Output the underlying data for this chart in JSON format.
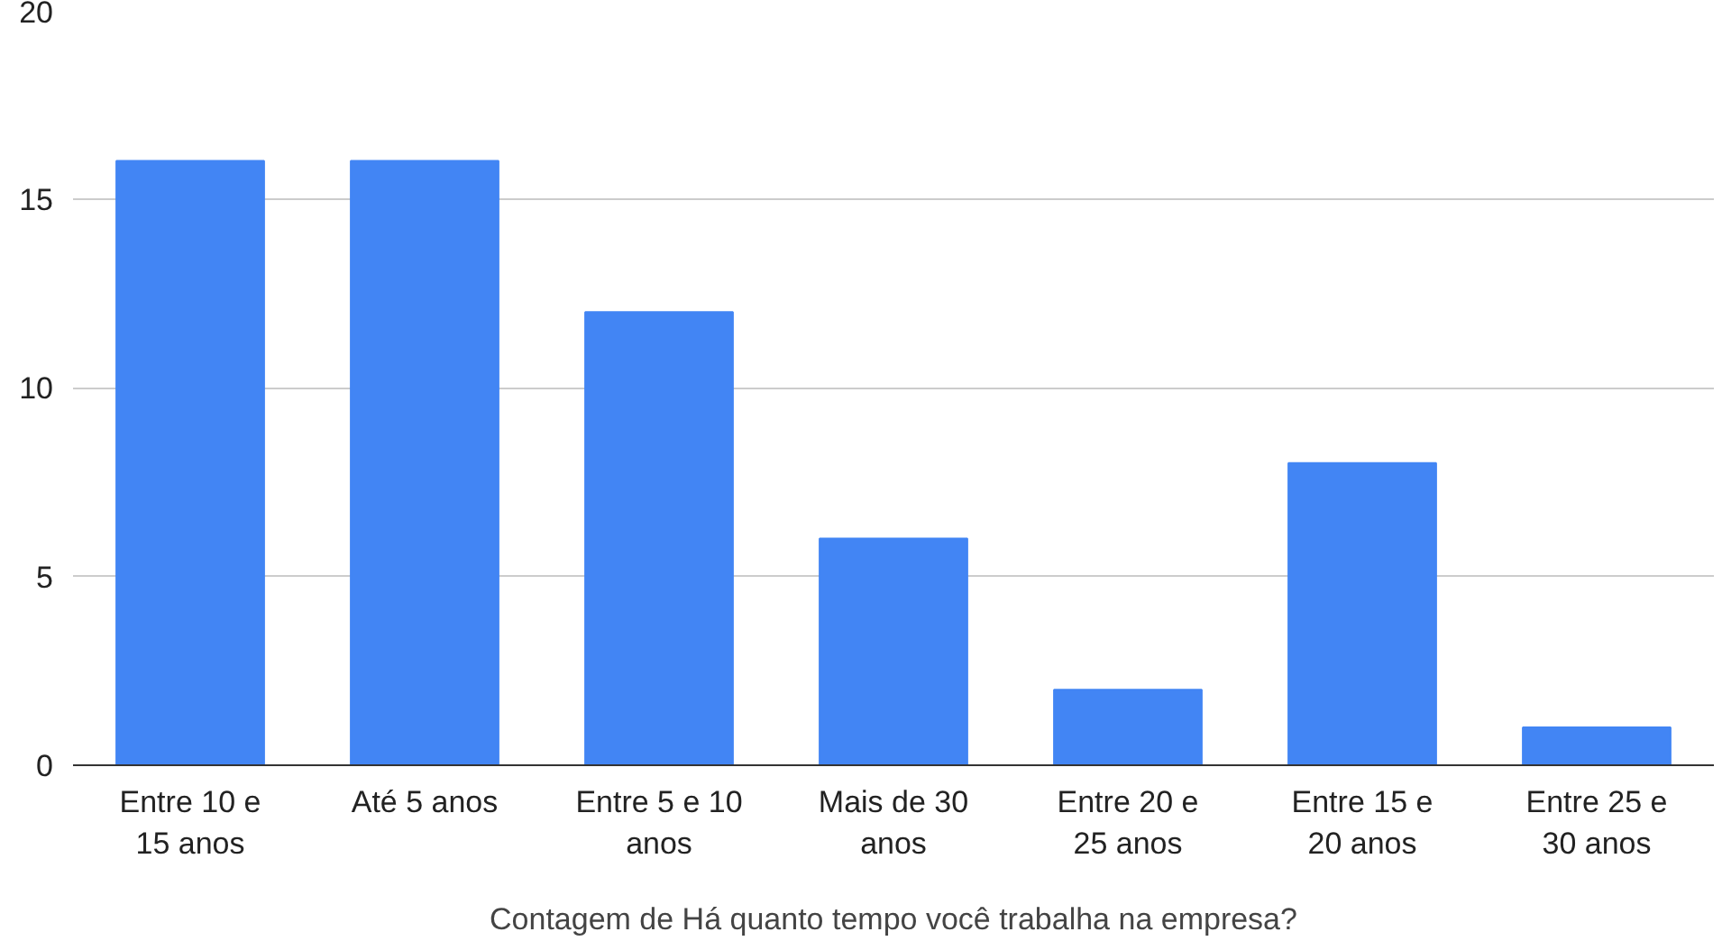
{
  "chart_data": {
    "type": "bar",
    "xlabel": "Contagem de Há quanto tempo você trabalha na empresa?",
    "categories": [
      "Entre 10 e 15 anos",
      "Até 5 anos",
      "Entre 5 e 10 anos",
      "Mais de 30 anos",
      "Entre 20 e 25 anos",
      "Entre 15 e 20 anos",
      "Entre 25 e 30 anos"
    ],
    "values": [
      16,
      16,
      12,
      6,
      2,
      8,
      1
    ],
    "color": "#4285f4",
    "ylim": [
      0,
      20
    ],
    "yticks": [
      0,
      5,
      10,
      15,
      20
    ],
    "grid": "y"
  }
}
